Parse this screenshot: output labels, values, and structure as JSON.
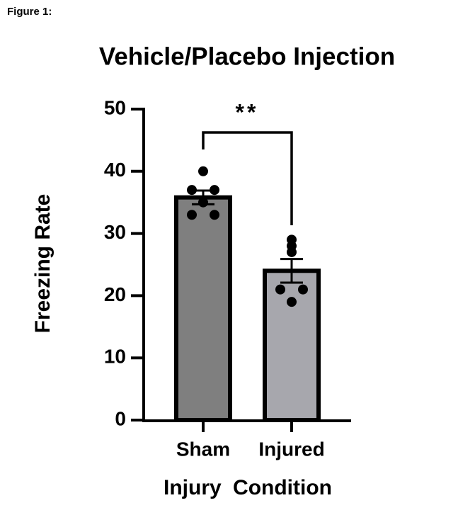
{
  "figure_label": "Figure 1:",
  "chart_data": {
    "type": "bar",
    "title": "Vehicle/Placebo Injection",
    "x_label": "Injury Condition",
    "y_label": "Freezing Rate",
    "categories": [
      "Sham",
      "Injured"
    ],
    "values": [
      35.8,
      24
    ],
    "errors": [
      1.1,
      1.9
    ],
    "points": [
      [
        40,
        37,
        37,
        35,
        33,
        33
      ],
      [
        29,
        28,
        27,
        21,
        21,
        19
      ]
    ],
    "colors": [
      "#7f7f7f",
      "#a7a7ad"
    ],
    "ylim": [
      0,
      50
    ],
    "yticks": [
      0,
      10,
      20,
      30,
      40,
      50
    ],
    "annotation": "**"
  }
}
